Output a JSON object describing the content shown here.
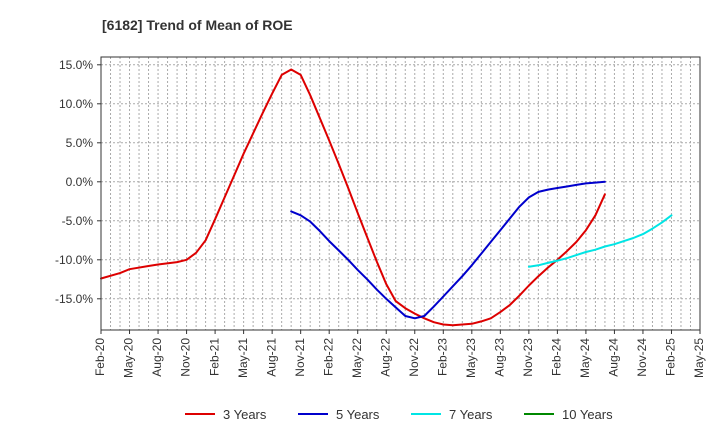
{
  "chart_data": {
    "type": "line",
    "title": "[6182]  Trend of Mean of ROE",
    "xlabel": "",
    "ylabel": "",
    "x_ticks": [
      "Feb-20",
      "May-20",
      "Aug-20",
      "Nov-20",
      "Feb-21",
      "May-21",
      "Aug-21",
      "Nov-21",
      "Feb-22",
      "May-22",
      "Aug-22",
      "Nov-22",
      "Feb-23",
      "May-23",
      "Aug-23",
      "Nov-23",
      "Feb-24",
      "May-24",
      "Aug-24",
      "Nov-24",
      "Feb-25",
      "May-25"
    ],
    "y_ticks": [
      "15.0%",
      "10.0%",
      "5.0%",
      "0.0%",
      "-5.0%",
      "-10.0%",
      "-15.0%"
    ],
    "y_tick_values": [
      15,
      10,
      5,
      0,
      -5,
      -10,
      -15
    ],
    "ylim": [
      -19,
      16
    ],
    "grid": true,
    "legend_position": "bottom",
    "series": [
      {
        "name": "3 Years",
        "color": "#dd0000",
        "points": [
          [
            "Feb-20",
            -12.4
          ],
          [
            "Apr-20",
            -11.7
          ],
          [
            "May-20",
            -11.2
          ],
          [
            "Jul-20",
            -10.8
          ],
          [
            "Aug-20",
            -10.6
          ],
          [
            "Oct-20",
            -10.3
          ],
          [
            "Nov-20",
            -10.0
          ],
          [
            "Dec-20",
            -9.1
          ],
          [
            "Jan-21",
            -7.5
          ],
          [
            "Feb-21",
            -4.8
          ],
          [
            "Mar-21",
            -2.0
          ],
          [
            "Apr-21",
            0.8
          ],
          [
            "May-21",
            3.6
          ],
          [
            "Jun-21",
            6.2
          ],
          [
            "Jul-21",
            8.8
          ],
          [
            "Aug-21",
            11.3
          ],
          [
            "Sep-21",
            13.7
          ],
          [
            "Oct-21",
            14.4
          ],
          [
            "Nov-21",
            13.7
          ],
          [
            "Dec-21",
            11.1
          ],
          [
            "Jan-22",
            8.2
          ],
          [
            "Feb-22",
            5.3
          ],
          [
            "Mar-22",
            2.3
          ],
          [
            "Apr-22",
            -0.8
          ],
          [
            "May-22",
            -4.0
          ],
          [
            "Jun-22",
            -7.1
          ],
          [
            "Jul-22",
            -10.2
          ],
          [
            "Aug-22",
            -13.1
          ],
          [
            "Sep-22",
            -15.3
          ],
          [
            "Oct-22",
            -16.2
          ],
          [
            "Nov-22",
            -16.9
          ],
          [
            "Dec-22",
            -17.5
          ],
          [
            "Jan-23",
            -18.0
          ],
          [
            "Feb-23",
            -18.3
          ],
          [
            "Mar-23",
            -18.4
          ],
          [
            "Apr-23",
            -18.3
          ],
          [
            "May-23",
            -18.2
          ],
          [
            "Jun-23",
            -17.9
          ],
          [
            "Jul-23",
            -17.5
          ],
          [
            "Aug-23",
            -16.7
          ],
          [
            "Sep-23",
            -15.8
          ],
          [
            "Oct-23",
            -14.6
          ],
          [
            "Nov-23",
            -13.3
          ],
          [
            "Dec-23",
            -12.1
          ],
          [
            "Jan-24",
            -11.0
          ],
          [
            "Feb-24",
            -10.0
          ],
          [
            "Mar-24",
            -8.9
          ],
          [
            "Apr-24",
            -7.7
          ],
          [
            "May-24",
            -6.2
          ],
          [
            "Jun-24",
            -4.3
          ],
          [
            "Jul-24",
            -1.6
          ]
        ]
      },
      {
        "name": "5 Years",
        "color": "#0000cc",
        "points": [
          [
            "Oct-21",
            -3.8
          ],
          [
            "Nov-21",
            -4.3
          ],
          [
            "Dec-21",
            -5.1
          ],
          [
            "Jan-22",
            -6.3
          ],
          [
            "Feb-22",
            -7.6
          ],
          [
            "Mar-22",
            -8.8
          ],
          [
            "Apr-22",
            -10.0
          ],
          [
            "May-22",
            -11.3
          ],
          [
            "Jun-22",
            -12.5
          ],
          [
            "Jul-22",
            -13.8
          ],
          [
            "Aug-22",
            -15.0
          ],
          [
            "Sep-22",
            -16.1
          ],
          [
            "Oct-22",
            -17.2
          ],
          [
            "Nov-22",
            -17.5
          ],
          [
            "Dec-22",
            -17.2
          ],
          [
            "Jan-23",
            -16.0
          ],
          [
            "Feb-23",
            -14.7
          ],
          [
            "Mar-23",
            -13.4
          ],
          [
            "Apr-23",
            -12.1
          ],
          [
            "May-23",
            -10.7
          ],
          [
            "Jun-23",
            -9.2
          ],
          [
            "Jul-23",
            -7.7
          ],
          [
            "Aug-23",
            -6.2
          ],
          [
            "Sep-23",
            -4.7
          ],
          [
            "Oct-23",
            -3.2
          ],
          [
            "Nov-23",
            -2.0
          ],
          [
            "Dec-23",
            -1.3
          ],
          [
            "Jan-24",
            -1.0
          ],
          [
            "Feb-24",
            -0.8
          ],
          [
            "Mar-24",
            -0.6
          ],
          [
            "Apr-24",
            -0.4
          ],
          [
            "May-24",
            -0.2
          ],
          [
            "Jun-24",
            -0.1
          ],
          [
            "Jul-24",
            0.0
          ]
        ]
      },
      {
        "name": "7 Years",
        "color": "#00e5e5",
        "points": [
          [
            "Nov-23",
            -10.9
          ],
          [
            "Dec-23",
            -10.7
          ],
          [
            "Jan-24",
            -10.4
          ],
          [
            "Feb-24",
            -10.1
          ],
          [
            "Mar-24",
            -9.8
          ],
          [
            "Apr-24",
            -9.4
          ],
          [
            "May-24",
            -9.0
          ],
          [
            "Jun-24",
            -8.7
          ],
          [
            "Jul-24",
            -8.3
          ],
          [
            "Aug-24",
            -8.0
          ],
          [
            "Sep-24",
            -7.6
          ],
          [
            "Oct-24",
            -7.2
          ],
          [
            "Nov-24",
            -6.7
          ],
          [
            "Dec-24",
            -6.0
          ],
          [
            "Jan-25",
            -5.2
          ],
          [
            "Feb-25",
            -4.3
          ]
        ]
      },
      {
        "name": "10 Years",
        "color": "#008800",
        "points": []
      }
    ]
  }
}
